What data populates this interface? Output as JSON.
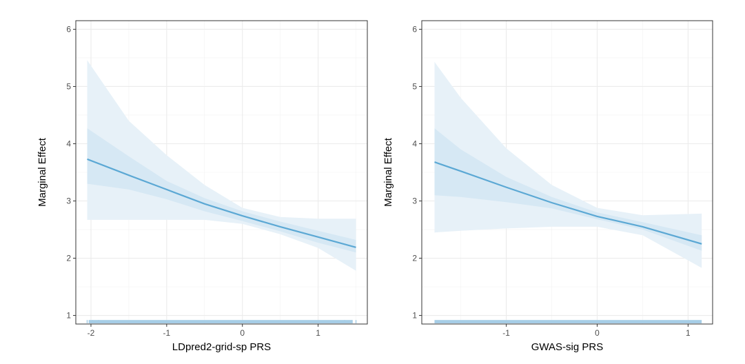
{
  "chart_data": [
    {
      "type": "line",
      "xlabel": "LDpred2-grid-sp PRS",
      "ylabel": "Marginal Effect",
      "xlim": [
        -2.2,
        1.65
      ],
      "ylim": [
        0.85,
        6.15
      ],
      "xticks": [
        -2,
        -1,
        0,
        1
      ],
      "yticks": [
        1,
        2,
        3,
        4,
        5,
        6
      ],
      "grid": true,
      "legend": "none",
      "colors": {
        "line": "#5BA8D4",
        "band_outer": "#E7F1F8",
        "band_inner": "#D6E8F4",
        "rug": "#A6CDE6"
      },
      "series": [
        {
          "x": [
            -2.05,
            -1.5,
            -1.0,
            -0.5,
            0.0,
            0.5,
            1.0,
            1.5
          ],
          "y": [
            3.73,
            3.45,
            3.2,
            2.95,
            2.74,
            2.55,
            2.37,
            2.19
          ]
        }
      ],
      "ci_outer": {
        "x": [
          -2.05,
          -1.5,
          -1.0,
          -0.5,
          0.0,
          0.5,
          1.0,
          1.5
        ],
        "lower": [
          2.67,
          2.67,
          2.67,
          2.67,
          2.6,
          2.42,
          2.18,
          1.78
        ],
        "upper": [
          5.46,
          4.4,
          3.8,
          3.28,
          2.88,
          2.72,
          2.69,
          2.69
        ]
      },
      "ci_inner": {
        "x": [
          -2.05,
          -1.5,
          -1.0,
          -0.5,
          0.0,
          0.5,
          1.0,
          1.5
        ],
        "lower": [
          3.3,
          3.2,
          3.03,
          2.82,
          2.65,
          2.47,
          2.27,
          2.1
        ],
        "upper": [
          4.27,
          3.78,
          3.35,
          3.05,
          2.82,
          2.64,
          2.48,
          2.32
        ]
      },
      "rug": {
        "x": [
          -2.05,
          -1.98,
          -1.9,
          1.35,
          1.45,
          1.5
        ],
        "xmin": -2.03,
        "xmax": 1.45
      }
    },
    {
      "type": "line",
      "xlabel": "GWAS-sig PRS",
      "ylabel": "Marginal Effect",
      "xlim": [
        -1.93,
        1.27
      ],
      "ylim": [
        0.85,
        6.15
      ],
      "xticks": [
        -1,
        0,
        1
      ],
      "yticks": [
        1,
        2,
        3,
        4,
        5,
        6
      ],
      "grid": true,
      "legend": "none",
      "colors": {
        "line": "#5BA8D4",
        "band_outer": "#E7F1F8",
        "band_inner": "#D6E8F4",
        "rug": "#A6CDE6"
      },
      "series": [
        {
          "x": [
            -1.79,
            -1.5,
            -1.0,
            -0.5,
            0.0,
            0.5,
            1.15
          ],
          "y": [
            3.68,
            3.52,
            3.24,
            2.97,
            2.73,
            2.55,
            2.25
          ]
        }
      ],
      "ci_outer": {
        "x": [
          -1.79,
          -1.5,
          -1.0,
          -0.5,
          0.0,
          0.5,
          1.15
        ],
        "lower": [
          2.45,
          2.48,
          2.52,
          2.55,
          2.55,
          2.4,
          1.83
        ],
        "upper": [
          5.43,
          4.8,
          3.92,
          3.28,
          2.88,
          2.75,
          2.78
        ]
      },
      "ci_inner": {
        "x": [
          -1.79,
          -1.5,
          -1.0,
          -0.5,
          0.0,
          0.5,
          1.15
        ],
        "lower": [
          3.1,
          3.07,
          2.98,
          2.87,
          2.68,
          2.5,
          2.13
        ],
        "upper": [
          4.27,
          3.9,
          3.42,
          3.07,
          2.8,
          2.63,
          2.4
        ]
      },
      "rug": {
        "x": [],
        "xmin": -1.79,
        "xmax": 1.15
      }
    }
  ]
}
